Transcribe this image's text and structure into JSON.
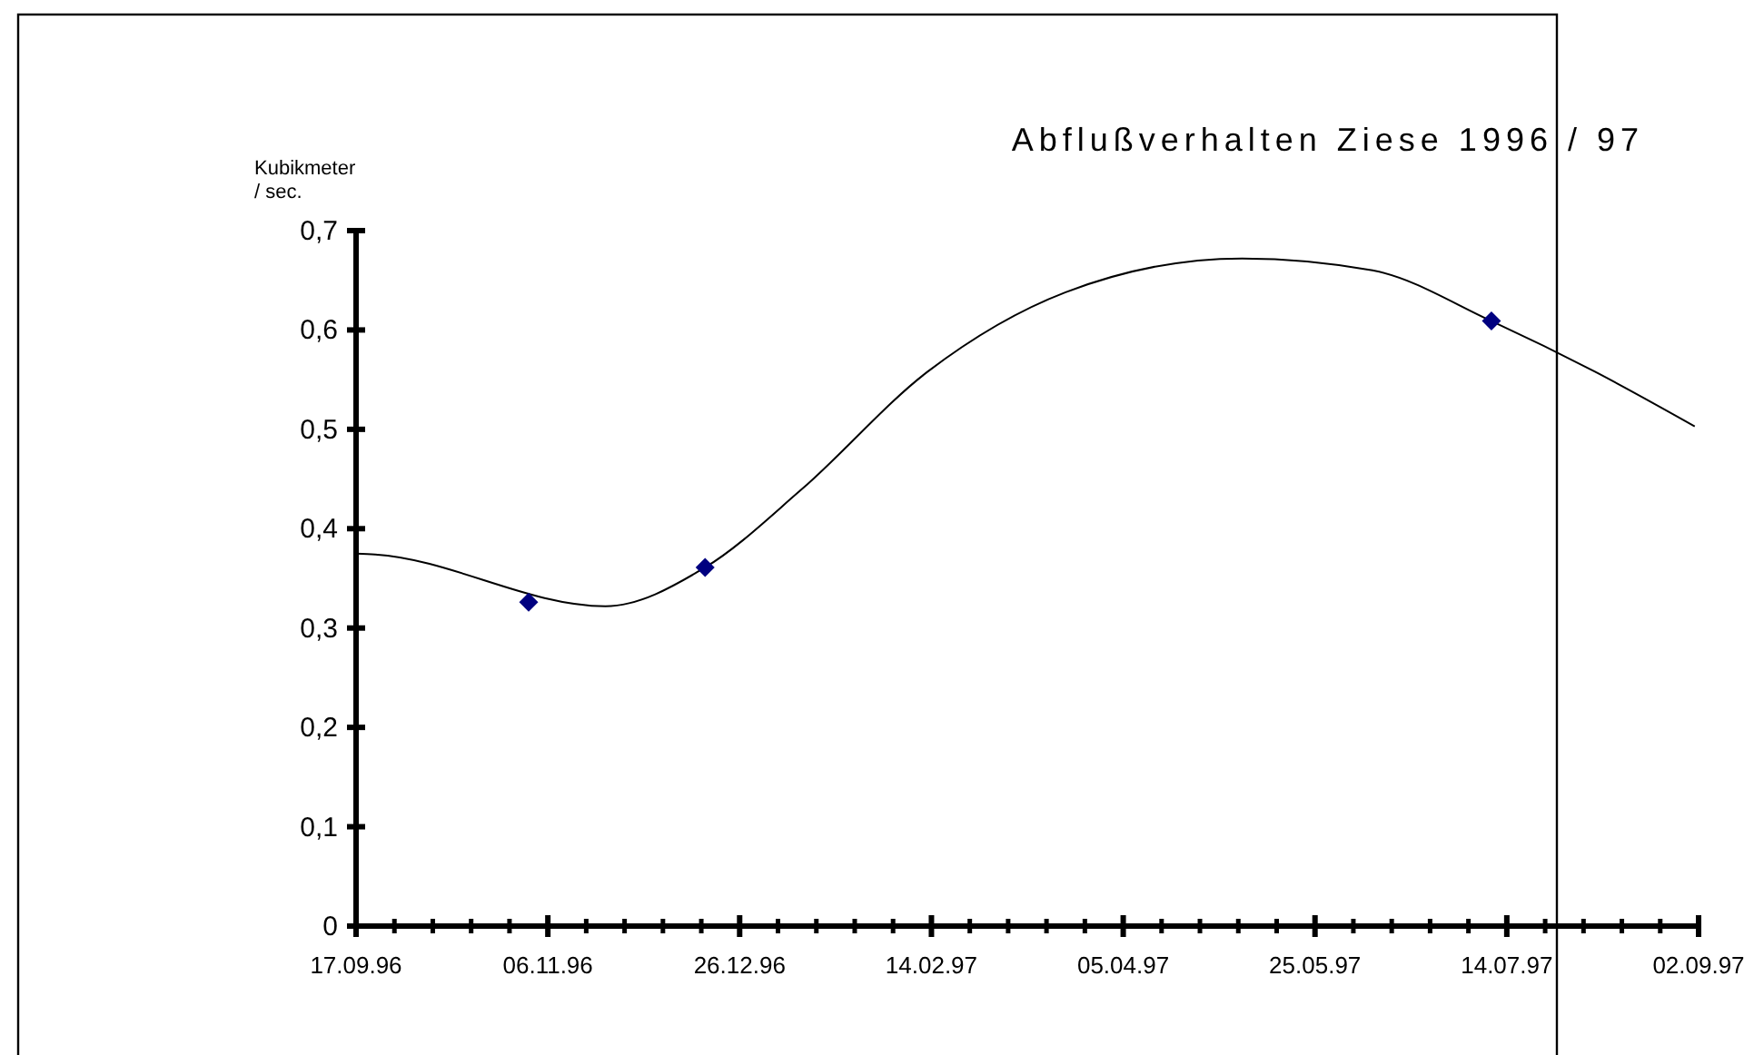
{
  "chart_data": {
    "type": "scatter",
    "title": "Abflußverhalten Ziese 1996 / 97",
    "ylabel": "Kubikmeter / sec.",
    "xlim": [
      "1996-09-17",
      "1997-09-02"
    ],
    "xticks": [
      {
        "value": "1996-09-17",
        "label": "17.09.96"
      },
      {
        "value": "1996-09-27",
        "label": null
      },
      {
        "value": "1996-10-07",
        "label": null
      },
      {
        "value": "1996-10-17",
        "label": null
      },
      {
        "value": "1996-10-27",
        "label": null
      },
      {
        "value": "1996-11-06",
        "label": "06.11.96"
      },
      {
        "value": "1996-11-16",
        "label": null
      },
      {
        "value": "1996-11-26",
        "label": null
      },
      {
        "value": "1996-12-06",
        "label": null
      },
      {
        "value": "1996-12-16",
        "label": null
      },
      {
        "value": "1996-12-26",
        "label": "26.12.96"
      },
      {
        "value": "1997-01-05",
        "label": null
      },
      {
        "value": "1997-01-15",
        "label": null
      },
      {
        "value": "1997-01-25",
        "label": null
      },
      {
        "value": "1997-02-04",
        "label": null
      },
      {
        "value": "1997-02-14",
        "label": "14.02.97"
      },
      {
        "value": "1997-02-24",
        "label": null
      },
      {
        "value": "1997-03-06",
        "label": null
      },
      {
        "value": "1997-03-16",
        "label": null
      },
      {
        "value": "1997-03-26",
        "label": null
      },
      {
        "value": "1997-04-05",
        "label": "05.04.97"
      },
      {
        "value": "1997-04-15",
        "label": null
      },
      {
        "value": "1997-04-25",
        "label": null
      },
      {
        "value": "1997-05-05",
        "label": null
      },
      {
        "value": "1997-05-15",
        "label": null
      },
      {
        "value": "1997-05-25",
        "label": "25.05.97"
      },
      {
        "value": "1997-06-04",
        "label": null
      },
      {
        "value": "1997-06-14",
        "label": null
      },
      {
        "value": "1997-06-24",
        "label": null
      },
      {
        "value": "1997-07-04",
        "label": null
      },
      {
        "value": "1997-07-14",
        "label": "14.07.97"
      },
      {
        "value": "1997-07-24",
        "label": null
      },
      {
        "value": "1997-08-03",
        "label": null
      },
      {
        "value": "1997-08-13",
        "label": null
      },
      {
        "value": "1997-08-23",
        "label": null
      },
      {
        "value": "1997-09-02",
        "label": "02.09.97"
      }
    ],
    "ylim": [
      0,
      0.7
    ],
    "yticks": [
      0,
      {
        "value": 0.1,
        "label": "0,1"
      },
      {
        "value": 0.2,
        "label": "0,2"
      },
      {
        "value": 0.3,
        "label": "0,3"
      },
      {
        "value": 0.4,
        "label": "0,4"
      },
      {
        "value": 0.5,
        "label": "0,5"
      },
      {
        "value": 0.6,
        "label": "0,6"
      },
      {
        "value": 0.7,
        "label": "0,7"
      }
    ],
    "grid": false,
    "series": [
      {
        "type": "line",
        "color": "#000000",
        "marker": "none",
        "x": [
          "1996-09-17",
          "1996-09-22",
          "1996-11-21",
          "1996-12-17",
          "1997-01-11",
          "1997-02-13",
          "1997-03-21",
          "1997-05-06",
          "1997-06-09",
          "1997-07-10",
          "1997-08-06",
          "1997-09-01"
        ],
        "values": [
          0.375,
          0.374,
          0.322,
          0.361,
          0.439,
          0.558,
          0.638,
          0.672,
          0.66,
          0.609,
          0.558,
          0.503
        ]
      },
      {
        "color": "#000080",
        "marker": "diamond",
        "x": [
          "1996-11-01",
          "1996-12-17",
          "1997-07-10"
        ],
        "values": [
          0.326,
          0.361,
          0.609
        ]
      }
    ]
  }
}
